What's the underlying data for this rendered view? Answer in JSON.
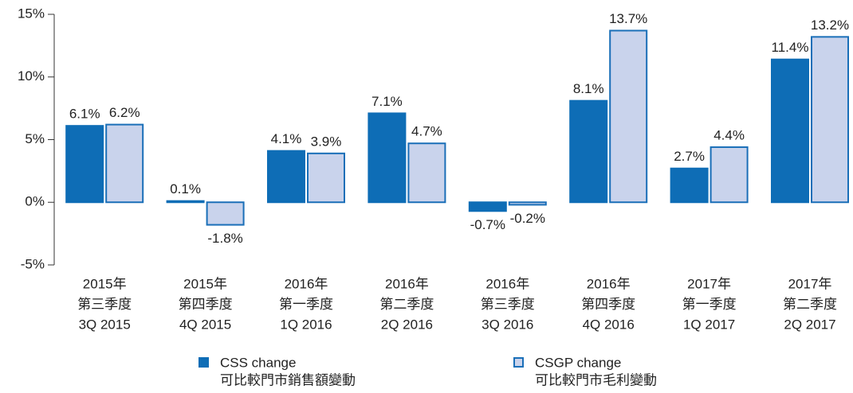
{
  "chart_data": {
    "type": "bar",
    "categories": [
      [
        "2015年",
        "第三季度",
        "3Q 2015"
      ],
      [
        "2015年",
        "第四季度",
        "4Q 2015"
      ],
      [
        "2016年",
        "第一季度",
        "1Q 2016"
      ],
      [
        "2016年",
        "第二季度",
        "2Q 2016"
      ],
      [
        "2016年",
        "第三季度",
        "3Q 2016"
      ],
      [
        "2016年",
        "第四季度",
        "4Q 2016"
      ],
      [
        "2017年",
        "第一季度",
        "1Q 2017"
      ],
      [
        "2017年",
        "第二季度",
        "2Q 2017"
      ]
    ],
    "series": [
      {
        "name": "CSS change",
        "name_zh": "可比較門市銷售額變動",
        "color": "#0e6db6",
        "border": "#0e6db6",
        "values": [
          6.1,
          0.1,
          4.1,
          7.1,
          -0.7,
          8.1,
          2.7,
          11.4
        ],
        "value_labels": [
          "6.1%",
          "0.1%",
          "4.1%",
          "7.1%",
          "-0.7%",
          "8.1%",
          "2.7%",
          "11.4%"
        ]
      },
      {
        "name": "CSGP change",
        "name_zh": "可比較門市毛利變動",
        "color": "#c9d3ec",
        "border": "#1a6fb8",
        "values": [
          6.2,
          -1.8,
          3.9,
          4.7,
          -0.2,
          13.7,
          4.4,
          13.2
        ],
        "value_labels": [
          "6.2%",
          "-1.8%",
          "3.9%",
          "4.7%",
          "-0.2%",
          "13.7%",
          "4.4%",
          "13.2%"
        ]
      }
    ],
    "ylim": [
      -5,
      15
    ],
    "yticks": [
      {
        "value": -5,
        "label": "-5%"
      },
      {
        "value": 0,
        "label": "0%"
      },
      {
        "value": 5,
        "label": "5%"
      },
      {
        "value": 10,
        "label": "10%"
      },
      {
        "value": 15,
        "label": "15%"
      }
    ],
    "legend": "bottom"
  }
}
